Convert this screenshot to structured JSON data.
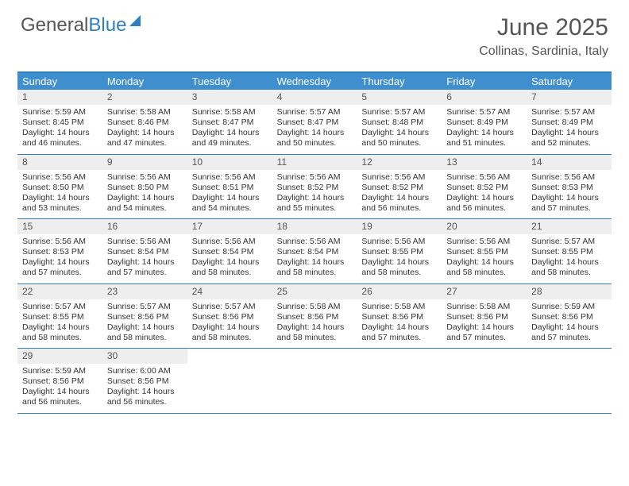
{
  "logo": {
    "word1": "General",
    "word2": "Blue"
  },
  "title": "June 2025",
  "location": "Collinas, Sardinia, Italy",
  "colors": {
    "accent": "#3f8fcf",
    "border": "#2f7fc1",
    "daynum_bg": "#eeeeee",
    "text": "#333333",
    "muted": "#555555",
    "bg": "#ffffff"
  },
  "day_headers": [
    "Sunday",
    "Monday",
    "Tuesday",
    "Wednesday",
    "Thursday",
    "Friday",
    "Saturday"
  ],
  "weeks": [
    [
      {
        "n": "1",
        "sr": "5:59 AM",
        "ss": "8:45 PM",
        "dl": "14 hours and 46 minutes."
      },
      {
        "n": "2",
        "sr": "5:58 AM",
        "ss": "8:46 PM",
        "dl": "14 hours and 47 minutes."
      },
      {
        "n": "3",
        "sr": "5:58 AM",
        "ss": "8:47 PM",
        "dl": "14 hours and 49 minutes."
      },
      {
        "n": "4",
        "sr": "5:57 AM",
        "ss": "8:47 PM",
        "dl": "14 hours and 50 minutes."
      },
      {
        "n": "5",
        "sr": "5:57 AM",
        "ss": "8:48 PM",
        "dl": "14 hours and 50 minutes."
      },
      {
        "n": "6",
        "sr": "5:57 AM",
        "ss": "8:49 PM",
        "dl": "14 hours and 51 minutes."
      },
      {
        "n": "7",
        "sr": "5:57 AM",
        "ss": "8:49 PM",
        "dl": "14 hours and 52 minutes."
      }
    ],
    [
      {
        "n": "8",
        "sr": "5:56 AM",
        "ss": "8:50 PM",
        "dl": "14 hours and 53 minutes."
      },
      {
        "n": "9",
        "sr": "5:56 AM",
        "ss": "8:50 PM",
        "dl": "14 hours and 54 minutes."
      },
      {
        "n": "10",
        "sr": "5:56 AM",
        "ss": "8:51 PM",
        "dl": "14 hours and 54 minutes."
      },
      {
        "n": "11",
        "sr": "5:56 AM",
        "ss": "8:52 PM",
        "dl": "14 hours and 55 minutes."
      },
      {
        "n": "12",
        "sr": "5:56 AM",
        "ss": "8:52 PM",
        "dl": "14 hours and 56 minutes."
      },
      {
        "n": "13",
        "sr": "5:56 AM",
        "ss": "8:52 PM",
        "dl": "14 hours and 56 minutes."
      },
      {
        "n": "14",
        "sr": "5:56 AM",
        "ss": "8:53 PM",
        "dl": "14 hours and 57 minutes."
      }
    ],
    [
      {
        "n": "15",
        "sr": "5:56 AM",
        "ss": "8:53 PM",
        "dl": "14 hours and 57 minutes."
      },
      {
        "n": "16",
        "sr": "5:56 AM",
        "ss": "8:54 PM",
        "dl": "14 hours and 57 minutes."
      },
      {
        "n": "17",
        "sr": "5:56 AM",
        "ss": "8:54 PM",
        "dl": "14 hours and 58 minutes."
      },
      {
        "n": "18",
        "sr": "5:56 AM",
        "ss": "8:54 PM",
        "dl": "14 hours and 58 minutes."
      },
      {
        "n": "19",
        "sr": "5:56 AM",
        "ss": "8:55 PM",
        "dl": "14 hours and 58 minutes."
      },
      {
        "n": "20",
        "sr": "5:56 AM",
        "ss": "8:55 PM",
        "dl": "14 hours and 58 minutes."
      },
      {
        "n": "21",
        "sr": "5:57 AM",
        "ss": "8:55 PM",
        "dl": "14 hours and 58 minutes."
      }
    ],
    [
      {
        "n": "22",
        "sr": "5:57 AM",
        "ss": "8:55 PM",
        "dl": "14 hours and 58 minutes."
      },
      {
        "n": "23",
        "sr": "5:57 AM",
        "ss": "8:56 PM",
        "dl": "14 hours and 58 minutes."
      },
      {
        "n": "24",
        "sr": "5:57 AM",
        "ss": "8:56 PM",
        "dl": "14 hours and 58 minutes."
      },
      {
        "n": "25",
        "sr": "5:58 AM",
        "ss": "8:56 PM",
        "dl": "14 hours and 58 minutes."
      },
      {
        "n": "26",
        "sr": "5:58 AM",
        "ss": "8:56 PM",
        "dl": "14 hours and 57 minutes."
      },
      {
        "n": "27",
        "sr": "5:58 AM",
        "ss": "8:56 PM",
        "dl": "14 hours and 57 minutes."
      },
      {
        "n": "28",
        "sr": "5:59 AM",
        "ss": "8:56 PM",
        "dl": "14 hours and 57 minutes."
      }
    ],
    [
      {
        "n": "29",
        "sr": "5:59 AM",
        "ss": "8:56 PM",
        "dl": "14 hours and 56 minutes."
      },
      {
        "n": "30",
        "sr": "6:00 AM",
        "ss": "8:56 PM",
        "dl": "14 hours and 56 minutes."
      }
    ]
  ],
  "labels": {
    "sunrise": "Sunrise:",
    "sunset": "Sunset:",
    "daylight": "Daylight:"
  }
}
